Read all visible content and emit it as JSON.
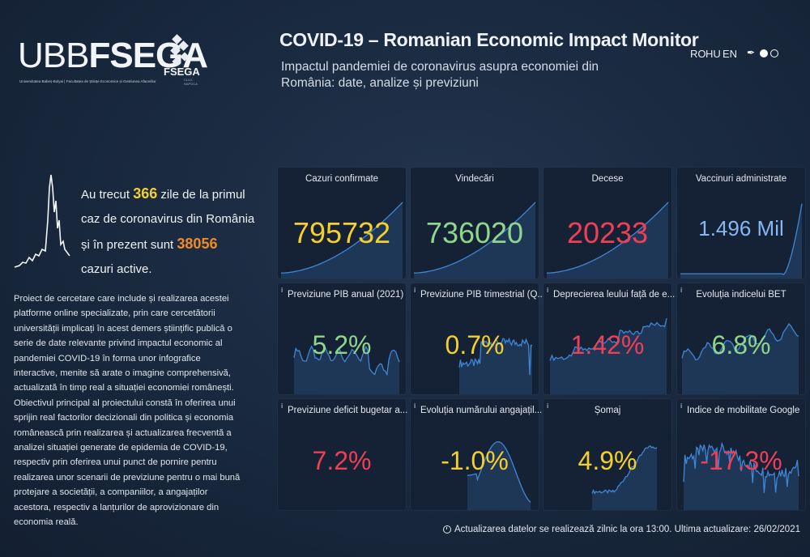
{
  "logo": {
    "ubb": "UBB",
    "fsega": "FSEGA",
    "subtitle": "Universitatea Babeș-Bolyai | Facultatea de Științe Economice și Gestiunea Afacerilor",
    "badge": "FSEGA",
    "badge_sub": "CLUJ-NAPOCA"
  },
  "header": {
    "title": "COVID-19 – Romanian Economic Impact Monitor",
    "subtitle": "Impactul pandemiei de coronavirus asupra economiei din România: date, analize și previziuni"
  },
  "languages": [
    "RO",
    "HU",
    "EN"
  ],
  "theme_icons": [
    "brush-icon",
    "dark-theme-dot",
    "light-theme-dot"
  ],
  "intro": {
    "line1_a": "Au trecut ",
    "days": "366",
    "line1_b": " zile de la primul",
    "line2": "caz de coronavirus din România",
    "line3_a": "și în prezent sunt ",
    "active": "38056",
    "line4": "cazuri active."
  },
  "description": "Proiect de cercetare care include și realizarea acestei platforme online specializate, prin care cercetătorii universității implicați în acest demers științific publică o serie de date relevante privind impactul economic al pandemiei COVID-19 în forma unor infografice interactive, menite să arate o imagine comprehensivă, actualizată în timp real a situației economiei românești. Obiectivul principal al proiectului constă în oferirea unui sprijin real factorilor decizionali din politica și economia românească prin realizarea și actualizarea frecventă a analizei situației generate de epidemia de COVID-19, respectiv prin oferirea unui punct de pornire pentru realizarea unor scenarii de previziune pentru o mai bună protejare a societății, a companiilor, a angajaților acestora, respectiv a lanțurilor de aprovizionare din economia reală.",
  "cards": [
    {
      "title": "Cazuri confirmate",
      "value": "795732",
      "color": "#f5cf2c",
      "info": false,
      "spark": "cum"
    },
    {
      "title": "Vindecări",
      "value": "736020",
      "color": "#8fd68a",
      "info": false,
      "spark": "cum"
    },
    {
      "title": "Decese",
      "value": "20233",
      "color": "#ef3f56",
      "info": false,
      "spark": "cum"
    },
    {
      "title": "Vaccinuri administrate",
      "value": "1.496 Mil",
      "color": "#86b7f2",
      "info": false,
      "spark": "vacc"
    },
    {
      "title": "Previziune PIB anual (2021)",
      "value": "5.2%",
      "color": "#8fd68a",
      "info": true,
      "spark": "pib"
    },
    {
      "title": "Previziune PIB trimestrial (Q...",
      "value": "0.7%",
      "color": "#f5cf2c",
      "info": true,
      "spark": "pibq"
    },
    {
      "title": "Deprecierea leului față de e...",
      "value": "1.42%",
      "color": "#ef3f56",
      "info": true,
      "spark": "step"
    },
    {
      "title": "Evoluția indicelui BET",
      "value": "6.8%",
      "color": "#8fd68a",
      "info": true,
      "spark": "bet"
    },
    {
      "title": "Previziune deficit bugetar a...",
      "value": "7.2%",
      "color": "#ef3f56",
      "info": true,
      "spark": "none"
    },
    {
      "title": "Evoluția numărului angajațil...",
      "value": "-1.0%",
      "color": "#f5cf2c",
      "info": true,
      "spark": "emp"
    },
    {
      "title": "Șomaj",
      "value": "4.9%",
      "color": "#f5cf2c",
      "info": true,
      "spark": "somaj"
    },
    {
      "title": "Indice de mobilitate Google",
      "value": "-17.3%",
      "color": "#ef3f56",
      "info": true,
      "spark": "mob"
    }
  ],
  "info_glyph": "i",
  "footer": {
    "update_text": "Actualizarea datelor se realizează zilnic la ora ",
    "hour": "13:00",
    "last_label": ". Ultima actualizare: ",
    "last_date": "26/02/2021"
  }
}
